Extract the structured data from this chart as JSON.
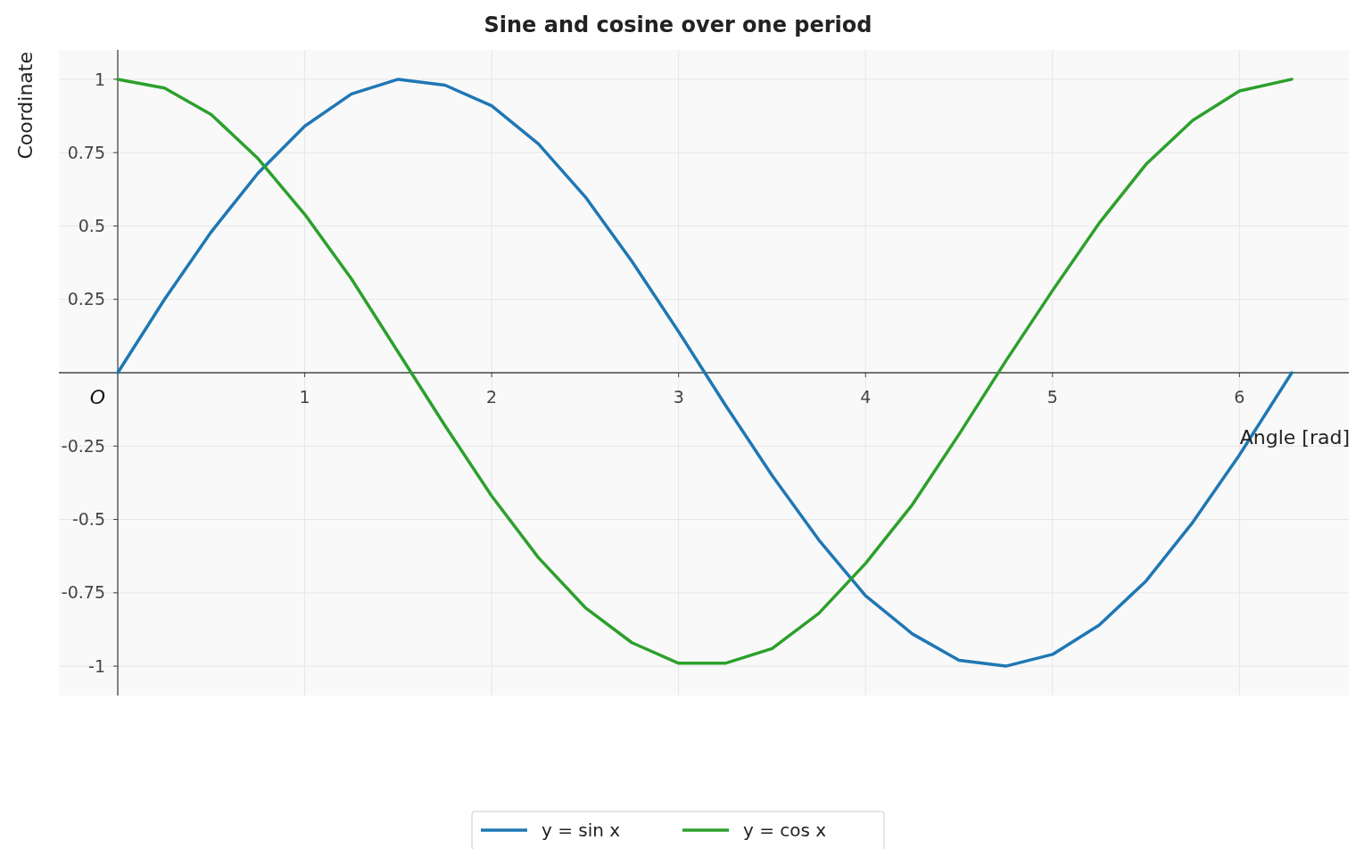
{
  "chart_data": {
    "type": "line",
    "title": "Sine and cosine over one period",
    "xlabel": "Angle [rad]",
    "ylabel": "Coordinate",
    "annotations": [
      {
        "text": "O",
        "x": 0,
        "y": 0
      }
    ],
    "x": [
      0,
      0.25,
      0.5,
      0.75,
      1,
      1.25,
      1.5,
      1.75,
      2,
      2.25,
      2.5,
      2.75,
      3,
      3.25,
      3.5,
      3.75,
      4,
      4.25,
      4.5,
      4.75,
      5,
      5.25,
      5.5,
      5.75,
      6,
      6.28
    ],
    "series": [
      {
        "name": "y = sin x",
        "color": "#1f77b4",
        "values": [
          0,
          0.25,
          0.48,
          0.68,
          0.84,
          0.95,
          1,
          0.98,
          0.91,
          0.78,
          0.6,
          0.38,
          0.14,
          -0.11,
          -0.35,
          -0.57,
          -0.76,
          -0.89,
          -0.98,
          -1,
          -0.96,
          -0.86,
          -0.71,
          -0.51,
          -0.28,
          0
        ]
      },
      {
        "name": "y = cos x",
        "color": "#2ca02c",
        "values": [
          1,
          0.97,
          0.88,
          0.73,
          0.54,
          0.32,
          0.07,
          -0.18,
          -0.42,
          -0.63,
          -0.8,
          -0.92,
          -0.99,
          -0.99,
          -0.94,
          -0.82,
          -0.65,
          -0.45,
          -0.21,
          0.04,
          0.28,
          0.51,
          0.71,
          0.86,
          0.96,
          1
        ]
      }
    ],
    "xlim": [
      -0.315,
      6.59
    ],
    "ylim": [
      -1.1,
      1.1
    ],
    "xticks": [
      1,
      2,
      3,
      4,
      5,
      6
    ],
    "yticks": [
      -1,
      -0.75,
      -0.5,
      -0.25,
      0.25,
      0.5,
      0.75,
      1
    ],
    "grid": true,
    "legend": "bottom",
    "marker": "none",
    "line_style": "solid"
  }
}
